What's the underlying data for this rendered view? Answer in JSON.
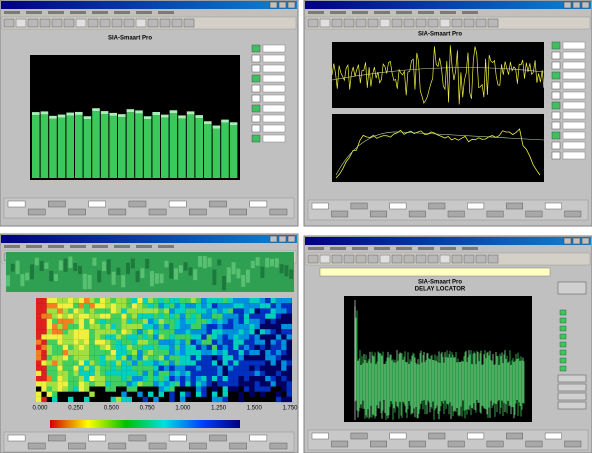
{
  "windows": [
    {
      "plot_title": "SIA-Smaart Pro"
    },
    {
      "plot_title": "SIA-Smaart Pro"
    },
    {
      "x_axis_labels": [
        "0.000",
        "0.250",
        "0.500",
        "0.750",
        "1.000",
        "1.250",
        "1.500",
        "1.750"
      ]
    },
    {
      "plot_title": "SIA-Smaart Pro",
      "plot_subtitle": "DELAY LOCATOR"
    }
  ]
}
